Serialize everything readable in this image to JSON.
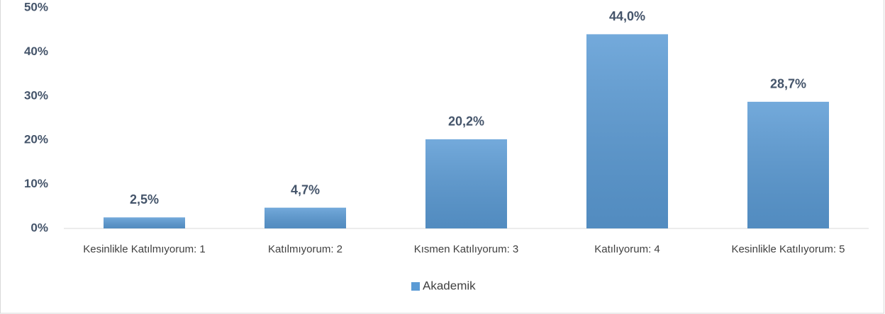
{
  "chart_data": {
    "type": "bar",
    "categories": [
      "Kesinlikle Katılmıyorum: 1",
      "Katılmıyorum: 2",
      "Kısmen Katılıyorum: 3",
      "Katılıyorum: 4",
      "Kesinlikle Katılıyorum: 5"
    ],
    "series": [
      {
        "name": "Akademik",
        "color": "#5b9bd5",
        "values": [
          2.5,
          4.7,
          20.2,
          44.0,
          28.7
        ],
        "value_labels": [
          "2,5%",
          "4,7%",
          "20,2%",
          "44,0%",
          "28,7%"
        ]
      }
    ],
    "ylim": [
      0,
      50
    ],
    "yticks": [
      {
        "value": 0,
        "label": "0%"
      },
      {
        "value": 10,
        "label": "10%"
      },
      {
        "value": 20,
        "label": "20%"
      },
      {
        "value": 30,
        "label": "30%"
      },
      {
        "value": 40,
        "label": "40%"
      },
      {
        "value": 50,
        "label": "50%"
      }
    ],
    "grid": false,
    "legend": "bottom"
  }
}
